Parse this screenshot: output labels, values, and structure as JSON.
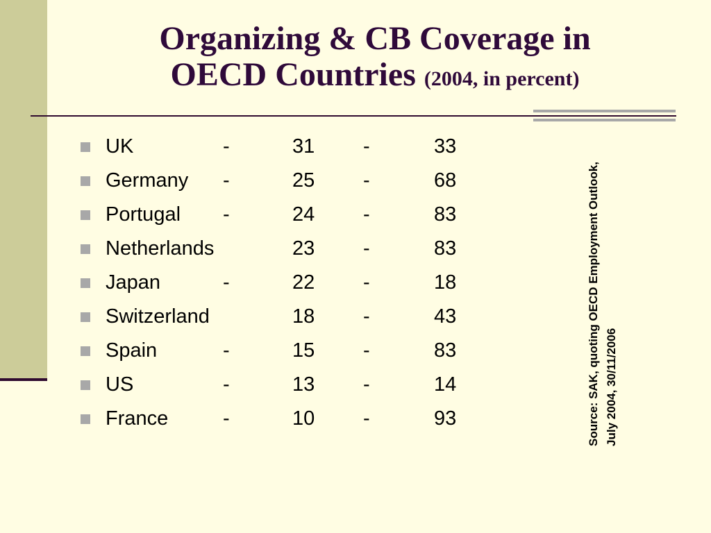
{
  "title": {
    "line1": "Organizing & CB Coverage in",
    "line2_main": "OECD Countries",
    "line2_sub": "(2004, in percent)"
  },
  "rows": [
    {
      "country": "UK",
      "dash1": "-",
      "org": "31",
      "dash2": "-",
      "cb": "33"
    },
    {
      "country": "Germany",
      "dash1": "-",
      "org": "25",
      "dash2": "-",
      "cb": "68"
    },
    {
      "country": "Portugal",
      "dash1": "-",
      "org": "24",
      "dash2": "-",
      "cb": "83"
    },
    {
      "country": "Netherlands",
      "dash1": "",
      "org": "23",
      "dash2": "-",
      "cb": "83"
    },
    {
      "country": "Japan",
      "dash1": "-",
      "org": "22",
      "dash2": "-",
      "cb": "18"
    },
    {
      "country": "Switzerland",
      "dash1": "",
      "org": "18",
      "dash2": "-",
      "cb": "43"
    },
    {
      "country": "Spain",
      "dash1": "-",
      "org": "15",
      "dash2": "-",
      "cb": "83"
    },
    {
      "country": "US",
      "dash1": "-",
      "org": "13",
      "dash2": "-",
      "cb": "14"
    },
    {
      "country": "France",
      "dash1": "-",
      "org": "10",
      "dash2": "-",
      "cb": "93"
    }
  ],
  "source": {
    "line1": "Source: SAK, quoting OECD Employment Outlook,",
    "line2": "July 2004, 30/11/2006"
  },
  "colors": {
    "background": "#fffde3",
    "band": "#cccc99",
    "title": "#2f0a3a",
    "accent_gray": "#a8a8a8"
  }
}
